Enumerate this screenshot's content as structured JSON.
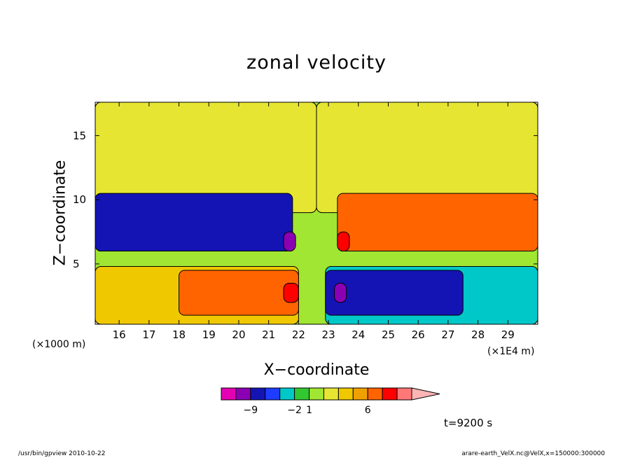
{
  "chart_data": {
    "type": "heatmap",
    "title": "zonal velocity",
    "xlabel": "X−coordinate",
    "ylabel": "Z−coordinate",
    "x_unit_left": "(×1000 m)",
    "x_unit_right": "(×1E4 m)",
    "xlim": [
      15.2,
      30.0
    ],
    "ylim": [
      0.3,
      17.6
    ],
    "x_ticks": [
      "16",
      "17",
      "18",
      "19",
      "20",
      "21",
      "22",
      "23",
      "24",
      "25",
      "26",
      "27",
      "28",
      "29"
    ],
    "x_tick_values": [
      16,
      17,
      18,
      19,
      20,
      21,
      22,
      23,
      24,
      25,
      26,
      27,
      28,
      29
    ],
    "y_ticks": [
      "5",
      "10",
      "15"
    ],
    "y_tick_values": [
      5,
      10,
      15
    ],
    "colorbar": {
      "colors": [
        "#e600b4",
        "#8c00b4",
        "#1414b4",
        "#1e3cff",
        "#00c8c8",
        "#32c832",
        "#a0e632",
        "#e6e632",
        "#f0c800",
        "#f0a000",
        "#ff6400",
        "#ff0000",
        "#ff7878",
        "#ffb4b4"
      ],
      "label_texts": [
        "−9",
        "−2",
        "1",
        "6"
      ],
      "label_positions": [
        1,
        4,
        5,
        9
      ]
    },
    "regions": [
      {
        "x": [
          15.2,
          30.0
        ],
        "z": [
          0.3,
          17.6
        ],
        "color": "#a0e632"
      },
      {
        "x": [
          15.2,
          22.6
        ],
        "z": [
          9.0,
          17.6
        ],
        "color": "#e6e632"
      },
      {
        "x": [
          22.6,
          30.0
        ],
        "z": [
          9.0,
          17.6
        ],
        "color": "#e6e632"
      },
      {
        "x": [
          15.2,
          21.8
        ],
        "z": [
          6.0,
          10.5
        ],
        "color": "#1414b4"
      },
      {
        "x": [
          23.3,
          30.0
        ],
        "z": [
          6.0,
          10.5
        ],
        "color": "#ff6400"
      },
      {
        "x": [
          15.2,
          22.0
        ],
        "z": [
          0.3,
          4.8
        ],
        "color": "#f0c800"
      },
      {
        "x": [
          22.9,
          30.0
        ],
        "z": [
          0.3,
          4.8
        ],
        "color": "#00c8c8"
      },
      {
        "x": [
          18.0,
          22.0
        ],
        "z": [
          1.0,
          4.5
        ],
        "color": "#ff6400"
      },
      {
        "x": [
          22.9,
          27.5
        ],
        "z": [
          1.0,
          4.5
        ],
        "color": "#1414b4"
      },
      {
        "x": [
          21.5,
          22.0
        ],
        "z": [
          2.0,
          3.5
        ],
        "color": "#ff0000"
      },
      {
        "x": [
          23.2,
          23.6
        ],
        "z": [
          2.0,
          3.5
        ],
        "color": "#8c00b4"
      },
      {
        "x": [
          21.5,
          21.9
        ],
        "z": [
          6.0,
          7.5
        ],
        "color": "#8c00b4"
      },
      {
        "x": [
          23.3,
          23.7
        ],
        "z": [
          6.0,
          7.5
        ],
        "color": "#ff0000"
      }
    ],
    "time_label": "t=9200 s"
  },
  "footer": {
    "left": "/usr/bin/gpview   2010-10-22",
    "right": "arare-earth_VelX.nc@VelX,x=150000:300000"
  }
}
